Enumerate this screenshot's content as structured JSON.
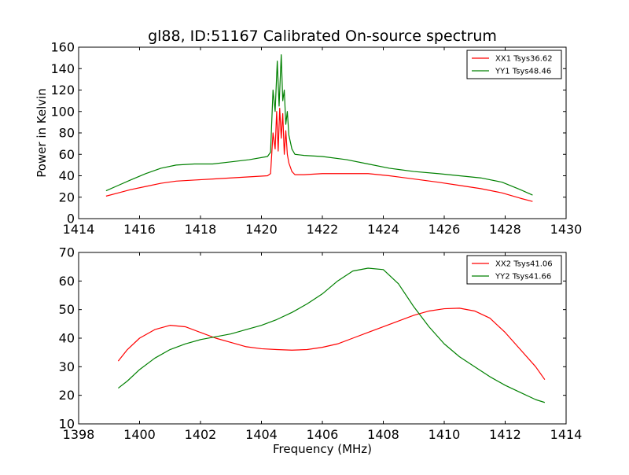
{
  "chart_data": [
    {
      "type": "line",
      "title": "gl88, ID:51167 Calibrated On-source spectrum",
      "xlabel": "",
      "ylabel": "Power in Kelvin",
      "xlim": [
        1414,
        1430
      ],
      "ylim": [
        0,
        160
      ],
      "xticks": [
        "1414",
        "1416",
        "1418",
        "1420",
        "1422",
        "1424",
        "1426",
        "1428",
        "1430"
      ],
      "yticks": [
        "0",
        "20",
        "40",
        "60",
        "80",
        "100",
        "120",
        "140",
        "160"
      ],
      "grid": false,
      "legend_position": "top-right",
      "series": [
        {
          "name": "XX1 Tsys36.62",
          "color": "#ff0000",
          "x": [
            1414.9,
            1415.3,
            1415.7,
            1416.2,
            1416.7,
            1417.2,
            1417.8,
            1418.4,
            1419.0,
            1419.6,
            1420.2,
            1420.3,
            1420.38,
            1420.45,
            1420.5,
            1420.55,
            1420.6,
            1420.65,
            1420.7,
            1420.75,
            1420.8,
            1420.85,
            1420.9,
            1421.0,
            1421.1,
            1421.4,
            1422.0,
            1422.8,
            1423.5,
            1424.2,
            1425.0,
            1425.8,
            1426.5,
            1427.2,
            1427.9,
            1428.5,
            1428.9
          ],
          "y": [
            21,
            24,
            27,
            30,
            33,
            35,
            36,
            37,
            38,
            39,
            40,
            42,
            80,
            65,
            100,
            63,
            103,
            75,
            98,
            60,
            82,
            60,
            52,
            44,
            41,
            41,
            42,
            42,
            42,
            40,
            37,
            34,
            31,
            28,
            24,
            19,
            16
          ]
        },
        {
          "name": "YY1 Tsys48.46",
          "color": "#008000",
          "x": [
            1414.9,
            1415.3,
            1415.7,
            1416.2,
            1416.7,
            1417.2,
            1417.8,
            1418.4,
            1419.0,
            1419.6,
            1420.2,
            1420.3,
            1420.38,
            1420.45,
            1420.52,
            1420.58,
            1420.65,
            1420.7,
            1420.75,
            1420.8,
            1420.85,
            1420.9,
            1421.0,
            1421.1,
            1421.4,
            1422.0,
            1422.8,
            1423.5,
            1424.2,
            1425.0,
            1425.8,
            1426.5,
            1427.2,
            1427.9,
            1428.5,
            1428.9
          ],
          "y": [
            26,
            31,
            36,
            42,
            47,
            50,
            51,
            51,
            53,
            55,
            58,
            62,
            120,
            100,
            147,
            105,
            153,
            110,
            120,
            88,
            100,
            78,
            65,
            60,
            59,
            58,
            55,
            51,
            47,
            44,
            42,
            40,
            38,
            34,
            27,
            22
          ]
        }
      ]
    },
    {
      "type": "line",
      "title": "",
      "xlabel": "Frequency (MHz)",
      "ylabel": "",
      "xlim": [
        1398,
        1414
      ],
      "ylim": [
        10,
        70
      ],
      "xticks": [
        "1398",
        "1400",
        "1402",
        "1404",
        "1406",
        "1408",
        "1410",
        "1412",
        "1414"
      ],
      "yticks": [
        "10",
        "20",
        "30",
        "40",
        "50",
        "60",
        "70"
      ],
      "grid": false,
      "legend_position": "top-right",
      "series": [
        {
          "name": "XX2 Tsys41.06",
          "color": "#ff0000",
          "x": [
            1399.3,
            1399.6,
            1400.0,
            1400.5,
            1401.0,
            1401.5,
            1402.0,
            1402.5,
            1403.0,
            1403.5,
            1404.0,
            1404.5,
            1405.0,
            1405.5,
            1406.0,
            1406.5,
            1407.0,
            1407.5,
            1408.0,
            1408.5,
            1409.0,
            1409.5,
            1410.0,
            1410.5,
            1411.0,
            1411.5,
            1412.0,
            1412.5,
            1413.0,
            1413.3
          ],
          "y": [
            32,
            36,
            40,
            43,
            44.5,
            44,
            42,
            40,
            38.5,
            37,
            36.3,
            36,
            35.8,
            36,
            36.8,
            38,
            40,
            42,
            44,
            46,
            48,
            49.5,
            50.3,
            50.5,
            49.5,
            47,
            42,
            36,
            30,
            25.5
          ]
        },
        {
          "name": "YY2 Tsys41.66",
          "color": "#008000",
          "x": [
            1399.3,
            1399.6,
            1400.0,
            1400.5,
            1401.0,
            1401.5,
            1402.0,
            1402.5,
            1403.0,
            1403.5,
            1404.0,
            1404.5,
            1405.0,
            1405.5,
            1406.0,
            1406.5,
            1407.0,
            1407.5,
            1408.0,
            1408.5,
            1409.0,
            1409.5,
            1410.0,
            1410.5,
            1411.0,
            1411.5,
            1412.0,
            1412.5,
            1413.0,
            1413.3
          ],
          "y": [
            22.5,
            25,
            29,
            33,
            36,
            38,
            39.5,
            40.5,
            41.5,
            43,
            44.5,
            46.5,
            49,
            52,
            55.5,
            60,
            63.5,
            64.5,
            64,
            59,
            51,
            44,
            38,
            33.5,
            30,
            26.5,
            23.5,
            21,
            18.5,
            17.5
          ]
        }
      ]
    }
  ]
}
